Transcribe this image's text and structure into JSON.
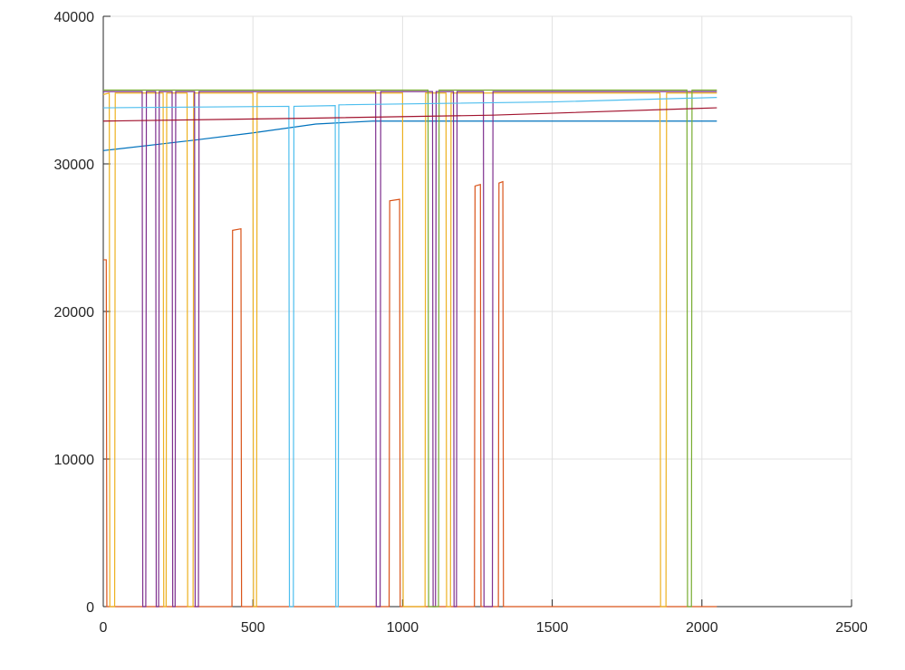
{
  "chart_data": {
    "type": "line",
    "title": "",
    "xlabel": "",
    "ylabel": "",
    "xlim": [
      0,
      2500
    ],
    "ylim": [
      0,
      40000
    ],
    "x_ticks": [
      0,
      500,
      1000,
      1500,
      2000,
      2500
    ],
    "y_ticks": [
      0,
      10000,
      20000,
      30000,
      40000
    ],
    "x_tick_labels": [
      "0",
      "500",
      "1000",
      "1500",
      "2000",
      "2500"
    ],
    "y_tick_labels": [
      "0",
      "10000",
      "20000",
      "30000",
      "40000"
    ],
    "grid": true,
    "legend": "none",
    "series": [
      {
        "color": "#0072BD",
        "points": [
          [
            0,
            30900
          ],
          [
            300,
            31600
          ],
          [
            500,
            32100
          ],
          [
            710,
            32700
          ],
          [
            900,
            32900
          ],
          [
            1100,
            32900
          ],
          [
            1500,
            32900
          ],
          [
            2050,
            32900
          ]
        ]
      },
      {
        "color": "#D95319",
        "points": [
          [
            0,
            23500
          ],
          [
            10,
            23500
          ],
          [
            12,
            0
          ],
          [
            430,
            0
          ],
          [
            432,
            25500
          ],
          [
            460,
            25600
          ],
          [
            462,
            0
          ],
          [
            955,
            0
          ],
          [
            957,
            27500
          ],
          [
            990,
            27600
          ],
          [
            992,
            0
          ],
          [
            1240,
            0
          ],
          [
            1242,
            28500
          ],
          [
            1260,
            28600
          ],
          [
            1262,
            0
          ],
          [
            1320,
            0
          ],
          [
            1322,
            28700
          ],
          [
            1335,
            28800
          ],
          [
            1337,
            0
          ],
          [
            2050,
            0
          ]
        ]
      },
      {
        "color": "#EDB120",
        "points": [
          [
            0,
            34700
          ],
          [
            20,
            34800
          ],
          [
            22,
            0
          ],
          [
            38,
            0
          ],
          [
            40,
            34800
          ],
          [
            200,
            34800
          ],
          [
            202,
            0
          ],
          [
            210,
            0
          ],
          [
            212,
            34800
          ],
          [
            280,
            34800
          ],
          [
            282,
            0
          ],
          [
            300,
            0
          ],
          [
            302,
            34800
          ],
          [
            500,
            34800
          ],
          [
            502,
            0
          ],
          [
            512,
            0
          ],
          [
            514,
            34800
          ],
          [
            1000,
            34800
          ],
          [
            1002,
            0
          ],
          [
            1075,
            0
          ],
          [
            1077,
            34800
          ],
          [
            1145,
            34800
          ],
          [
            1147,
            0
          ],
          [
            1160,
            0
          ],
          [
            1162,
            34800
          ],
          [
            1860,
            34800
          ],
          [
            1862,
            0
          ],
          [
            1880,
            0
          ],
          [
            1882,
            34800
          ],
          [
            2050,
            34800
          ]
        ]
      },
      {
        "color": "#7E2F8E",
        "points": [
          [
            0,
            34900
          ],
          [
            130,
            34900
          ],
          [
            132,
            0
          ],
          [
            142,
            0
          ],
          [
            144,
            34900
          ],
          [
            175,
            34900
          ],
          [
            177,
            0
          ],
          [
            185,
            0
          ],
          [
            187,
            34900
          ],
          [
            230,
            34900
          ],
          [
            232,
            0
          ],
          [
            240,
            0
          ],
          [
            242,
            34900
          ],
          [
            305,
            34900
          ],
          [
            307,
            0
          ],
          [
            318,
            0
          ],
          [
            320,
            34900
          ],
          [
            910,
            34900
          ],
          [
            912,
            0
          ],
          [
            925,
            0
          ],
          [
            927,
            34900
          ],
          [
            1100,
            34900
          ],
          [
            1102,
            0
          ],
          [
            1110,
            0
          ],
          [
            1112,
            34900
          ],
          [
            1170,
            34900
          ],
          [
            1172,
            0
          ],
          [
            1180,
            0
          ],
          [
            1182,
            34900
          ],
          [
            1270,
            34900
          ],
          [
            1272,
            0
          ],
          [
            1300,
            0
          ],
          [
            1302,
            34900
          ],
          [
            2050,
            34900
          ]
        ]
      },
      {
        "color": "#77AC30",
        "points": [
          [
            0,
            35000
          ],
          [
            1085,
            35000
          ],
          [
            1087,
            0
          ],
          [
            1120,
            0
          ],
          [
            1122,
            35000
          ],
          [
            1950,
            35000
          ],
          [
            1952,
            0
          ],
          [
            1965,
            0
          ],
          [
            1967,
            35000
          ],
          [
            2050,
            35000
          ]
        ]
      },
      {
        "color": "#4DBEEE",
        "points": [
          [
            0,
            33800
          ],
          [
            620,
            33900
          ],
          [
            622,
            0
          ],
          [
            635,
            0
          ],
          [
            637,
            33900
          ],
          [
            775,
            33950
          ],
          [
            777,
            0
          ],
          [
            785,
            0
          ],
          [
            787,
            34000
          ],
          [
            1500,
            34200
          ],
          [
            2050,
            34500
          ]
        ]
      },
      {
        "color": "#A2142F",
        "points": [
          [
            0,
            32900
          ],
          [
            700,
            33100
          ],
          [
            1300,
            33300
          ],
          [
            2050,
            33800
          ]
        ]
      }
    ]
  }
}
